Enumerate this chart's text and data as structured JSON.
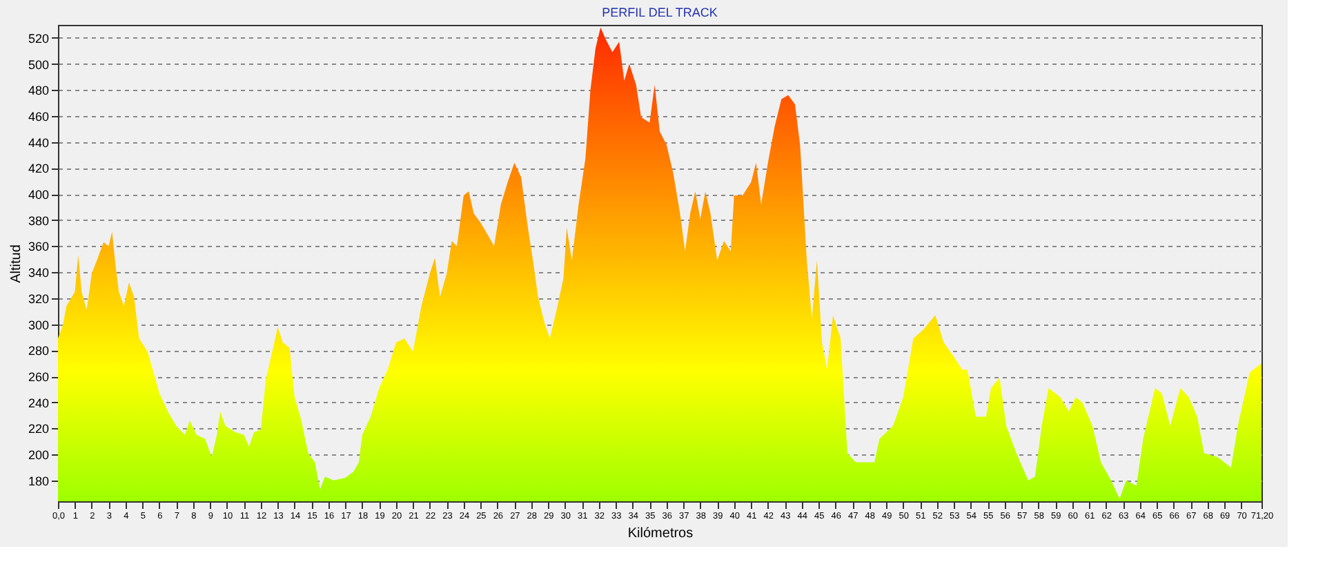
{
  "chart_data": {
    "type": "area",
    "title": "PERFIL DEL TRACK",
    "xlabel": "Kilómetros",
    "ylabel": "Altitud",
    "x": [
      0,
      0.3,
      0.5,
      1.0,
      1.2,
      1.4,
      1.7,
      2.0,
      2.3,
      2.7,
      3.0,
      3.2,
      3.4,
      3.6,
      3.9,
      4.2,
      4.5,
      4.8,
      5.3,
      5.7,
      6.0,
      6.5,
      7.0,
      7.5,
      7.8,
      8.2,
      8.7,
      9.1,
      9.4,
      9.6,
      9.9,
      10.5,
      11.0,
      11.3,
      11.6,
      12.0,
      12.3,
      12.8,
      13.0,
      13.3,
      13.7,
      14.0,
      14.4,
      14.8,
      15.2,
      15.5,
      15.8,
      16.3,
      17.0,
      17.5,
      17.8,
      18.0,
      18.5,
      19.0,
      19.5,
      20.0,
      20.5,
      21.0,
      21.5,
      22.0,
      22.3,
      22.6,
      23.0,
      23.3,
      23.6,
      24.0,
      24.3,
      24.6,
      25.0,
      25.5,
      25.8,
      26.2,
      26.6,
      27.0,
      27.4,
      27.8,
      28.1,
      28.4,
      28.8,
      29.1,
      29.5,
      29.9,
      30.1,
      30.4,
      30.8,
      31.2,
      31.5,
      31.8,
      32.1,
      32.4,
      32.8,
      33.2,
      33.5,
      33.8,
      34.2,
      34.5,
      35.0,
      35.3,
      35.6,
      36.0,
      36.4,
      36.8,
      37.1,
      37.4,
      37.7,
      38.0,
      38.3,
      38.6,
      39.0,
      39.4,
      39.8,
      40.0,
      40.5,
      41.0,
      41.3,
      41.6,
      42.0,
      42.4,
      42.8,
      43.2,
      43.6,
      43.9,
      44.3,
      44.6,
      44.9,
      45.2,
      45.5,
      45.85,
      46.3,
      46.7,
      47.2,
      48.3,
      48.6,
      49.4,
      50.0,
      50.6,
      51.2,
      51.9,
      52.4,
      53.0,
      53.5,
      53.8,
      54.3,
      54.9,
      55.2,
      55.7,
      56.1,
      56.7,
      57.4,
      57.8,
      58.2,
      58.6,
      59.3,
      59.8,
      60.2,
      60.6,
      61.2,
      61.7,
      62.3,
      62.8,
      63.2,
      63.8,
      64.2,
      64.9,
      65.3,
      65.8,
      66.4,
      66.9,
      67.4,
      67.8,
      68.6,
      69.4,
      69.8,
      70.5,
      71.2
    ],
    "series": [
      {
        "color": "#ff2a00",
        "values": [
          289,
          300,
          314,
          325,
          353,
          325,
          311,
          339,
          349,
          363,
          360,
          371,
          346,
          325,
          314,
          332,
          321,
          289,
          279,
          261,
          247,
          233,
          222,
          215,
          226,
          215,
          212,
          198,
          215,
          233,
          222,
          217,
          215,
          206,
          217,
          219,
          258,
          286,
          298,
          286,
          282,
          244,
          226,
          201,
          194,
          173,
          183,
          180,
          182,
          187,
          194,
          215,
          229,
          251,
          265,
          286,
          289,
          279,
          314,
          339,
          351,
          321,
          339,
          364,
          360,
          399,
          402,
          385,
          378,
          367,
          360,
          392,
          409,
          424,
          413,
          374,
          349,
          321,
          300,
          289,
          311,
          335,
          374,
          349,
          392,
          427,
          480,
          512,
          528,
          519,
          509,
          517,
          487,
          500,
          484,
          459,
          455,
          484,
          448,
          438,
          416,
          385,
          356,
          385,
          402,
          381,
          402,
          385,
          349,
          364,
          356,
          399,
          399,
          409,
          424,
          392,
          424,
          452,
          473,
          476,
          469,
          438,
          349,
          304,
          349,
          286,
          265,
          307,
          289,
          201,
          194,
          194,
          212,
          222,
          244,
          289,
          296,
          307,
          286,
          275,
          265,
          265,
          229,
          229,
          251,
          259,
          222,
          201,
          180,
          183,
          222,
          251,
          244,
          233,
          244,
          240,
          222,
          194,
          180,
          166,
          180,
          176,
          212,
          251,
          247,
          222,
          251,
          244,
          229,
          201,
          198,
          190,
          222,
          263,
          270
        ]
      }
    ],
    "xlim": [
      0,
      71.2
    ],
    "ylim": [
      164,
      530
    ],
    "xticks": [
      {
        "value": 0,
        "label": "0,0"
      },
      1,
      2,
      3,
      4,
      5,
      6,
      7,
      8,
      9,
      10,
      11,
      12,
      13,
      14,
      15,
      16,
      17,
      18,
      19,
      20,
      21,
      22,
      23,
      24,
      25,
      26,
      27,
      28,
      29,
      30,
      31,
      32,
      33,
      34,
      35,
      36,
      37,
      38,
      39,
      40,
      41,
      42,
      43,
      44,
      45,
      46,
      47,
      48,
      49,
      50,
      51,
      52,
      53,
      54,
      55,
      56,
      57,
      58,
      59,
      60,
      61,
      62,
      63,
      64,
      65,
      66,
      67,
      68,
      69,
      70,
      {
        "value": 71.2,
        "label": "71,20"
      }
    ],
    "yticks": [
      180,
      200,
      220,
      240,
      260,
      280,
      300,
      320,
      340,
      360,
      380,
      400,
      420,
      440,
      460,
      480,
      500,
      520
    ],
    "grid": "y"
  }
}
